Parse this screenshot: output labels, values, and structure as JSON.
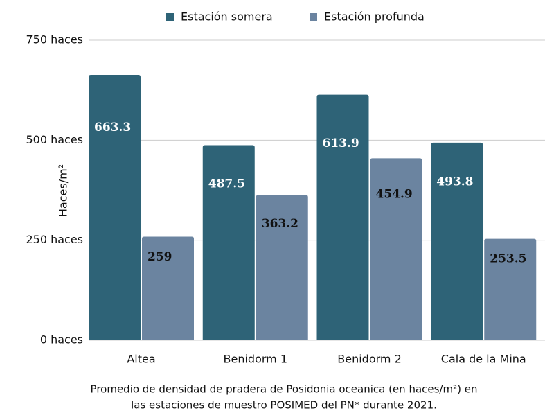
{
  "chart_data": {
    "type": "bar",
    "y_label": "Haces/m²",
    "categories": [
      "Altea",
      "Benidorm 1",
      "Benidorm 2",
      "Cala de la Mina"
    ],
    "series": [
      {
        "name": "Estación somera",
        "color": "#2e6377",
        "label_color": "#ffffff",
        "values": [
          663.3,
          487.5,
          613.9,
          493.8
        ]
      },
      {
        "name": "Estación profunda",
        "color": "#6b84a0",
        "label_color": "#111111",
        "values": [
          259,
          363.2,
          454.9,
          253.5
        ]
      }
    ],
    "ylim": [
      0,
      750
    ],
    "yticks": [
      {
        "value": 0,
        "label": "0 haces"
      },
      {
        "value": 250,
        "label": "250 haces"
      },
      {
        "value": 500,
        "label": "500 haces"
      },
      {
        "value": 750,
        "label": "750 haces"
      }
    ],
    "grid": true,
    "legend": "top",
    "caption": [
      "Promedio de densidad de pradera de Posidonia oceanica (en haces/m²) en",
      "las estaciones de muestro POSIMED del PN* durante 2021."
    ]
  }
}
